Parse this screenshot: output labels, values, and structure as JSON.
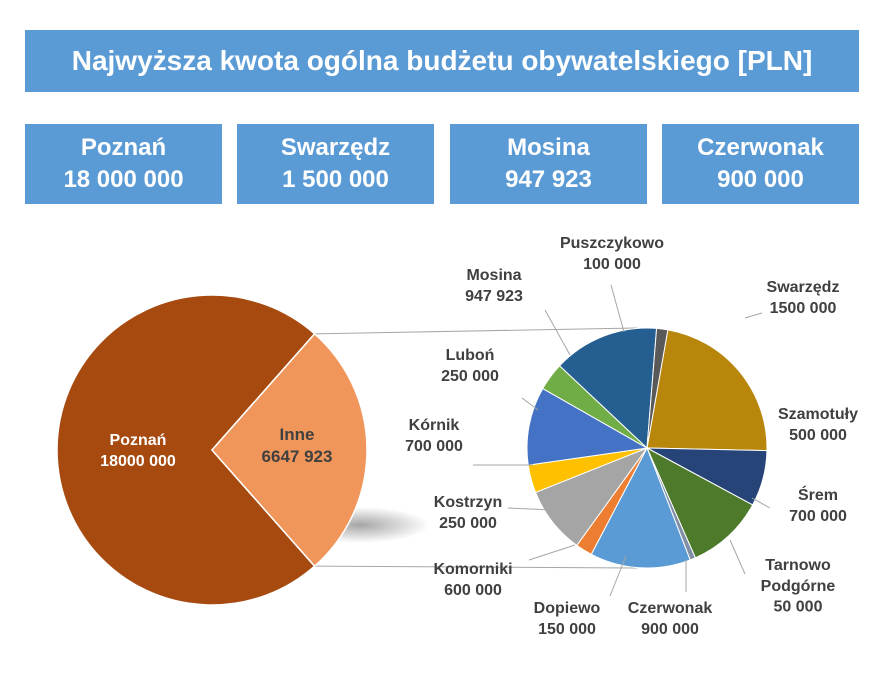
{
  "title": "Najwyższa kwota ogólna budżetu obywatelskiego [PLN]",
  "boxes": [
    {
      "name": "Poznań",
      "amount": "18 000 000"
    },
    {
      "name": "Swarzędz",
      "amount": "1 500 000"
    },
    {
      "name": "Mosina",
      "amount": "947 923"
    },
    {
      "name": "Czerwonak",
      "amount": "900 000"
    }
  ],
  "colors": {
    "banner": "#5b9bd5",
    "poznan": "#a64a10",
    "inne": "#f1965a"
  },
  "chart_data": {
    "type": "pie",
    "main_pie": {
      "slices": [
        {
          "label": "Poznań",
          "value_label": "18000 000",
          "value": 18000000,
          "color": "#a64a10"
        },
        {
          "label": "Inne",
          "value_label": "6647 923",
          "value": 6647923,
          "color": "#f1965a"
        }
      ]
    },
    "secondary_pie": {
      "slices": [
        {
          "label": "Swarzędz",
          "value_label": "1500 000",
          "value": 1500000,
          "color": "#b8860b"
        },
        {
          "label": "Szamotuły",
          "value_label": "500 000",
          "value": 500000,
          "color": "#264478"
        },
        {
          "label": "Śrem",
          "value_label": "700 000",
          "value": 700000,
          "color": "#4e7a2c"
        },
        {
          "label": "Tarnowo Podgórne",
          "value_label": "50 000",
          "value": 50000,
          "color": "#7f8fa6"
        },
        {
          "label": "Czerwonak",
          "value_label": "900 000",
          "value": 900000,
          "color": "#5b9bd5"
        },
        {
          "label": "Dopiewo",
          "value_label": "150 000",
          "value": 150000,
          "color": "#ed7d31"
        },
        {
          "label": "Komorniki",
          "value_label": "600 000",
          "value": 600000,
          "color": "#a5a5a5"
        },
        {
          "label": "Kostrzyn",
          "value_label": "250 000",
          "value": 250000,
          "color": "#ffc000"
        },
        {
          "label": "Kórnik",
          "value_label": "700 000",
          "value": 700000,
          "color": "#4472c4"
        },
        {
          "label": "Luboń",
          "value_label": "250 000",
          "value": 250000,
          "color": "#70ad47"
        },
        {
          "label": "Mosina",
          "value_label": "947 923",
          "value": 947923,
          "color": "#255e91"
        },
        {
          "label": "Puszczykowo",
          "value_label": "100 000",
          "value": 100000,
          "color": "#595959"
        }
      ]
    }
  }
}
